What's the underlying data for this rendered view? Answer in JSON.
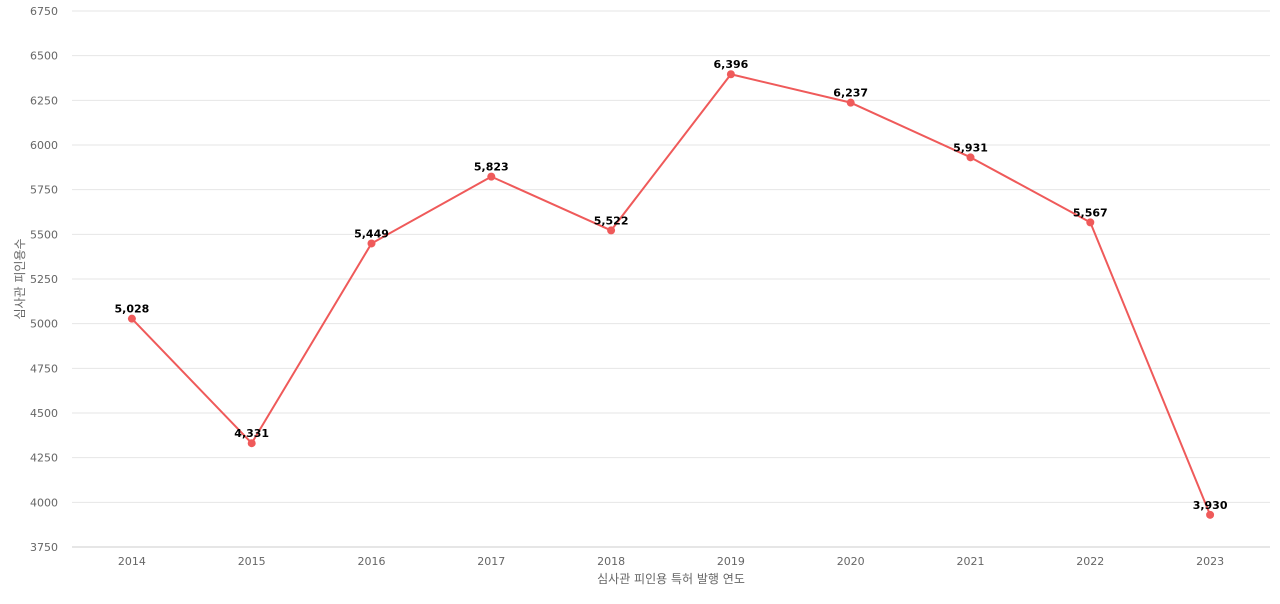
{
  "chart_data": {
    "type": "line",
    "title": "",
    "xlabel": "심사관 피인용 특허 발행 연도",
    "ylabel": "심사관 피인용수",
    "categories": [
      "2014",
      "2015",
      "2016",
      "2017",
      "2018",
      "2019",
      "2020",
      "2021",
      "2022",
      "2023"
    ],
    "series": [
      {
        "values": [
          5028,
          4331,
          5449,
          5823,
          5522,
          6396,
          6237,
          5931,
          5567,
          3930
        ],
        "data_labels": [
          "5,028",
          "4,331",
          "5,449",
          "5,823",
          "5,522",
          "6,396",
          "6,237",
          "5,931",
          "5,567",
          "3,930"
        ],
        "color": "#ef5a5a"
      }
    ],
    "ylim": [
      3750,
      6750
    ],
    "yticks": [
      "3750",
      "4000",
      "4250",
      "4500",
      "4750",
      "5000",
      "5250",
      "5500",
      "5750",
      "6000",
      "6250",
      "6500",
      "6750"
    ],
    "grid": true,
    "legend": "none",
    "colors": {
      "line": "#ef5a5a",
      "grid": "#e6e6e6",
      "axis_text": "#666666",
      "data_label": "#000000"
    }
  }
}
